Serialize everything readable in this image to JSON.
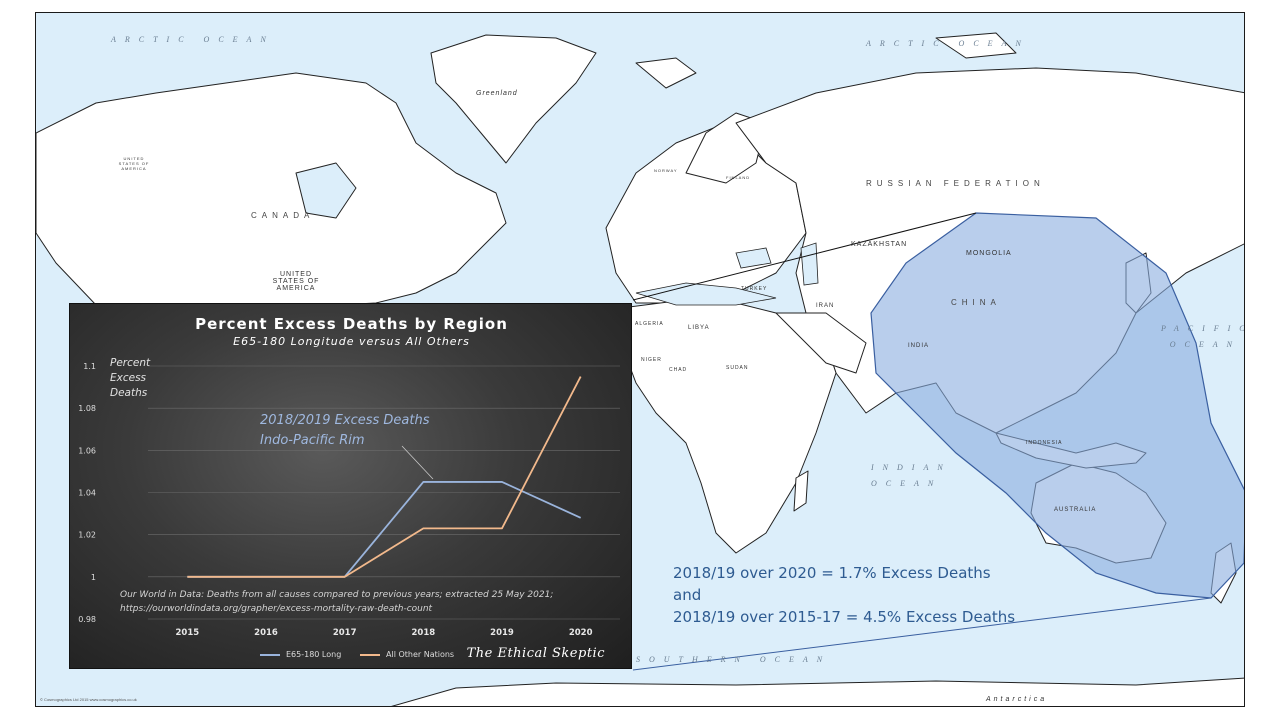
{
  "map": {
    "labels": {
      "arctic_ocean_left": "ARCTIC OCEAN",
      "arctic_ocean_right": "ARCTIC OCEAN",
      "greenland": "Greenland",
      "canada": "CANADA",
      "united_states": "UNITED STATES OF AMERICA",
      "united_states_small": "UNITED STATES OF AMERICA",
      "russian_federation": "RUSSIAN FEDERATION",
      "kazakhstan": "KAZAKHSTAN",
      "mongolia": "MONGOLIA",
      "china": "CHINA",
      "india": "INDIA",
      "iran": "IRAN",
      "turkey": "TURKEY",
      "libya": "LIBYA",
      "niger": "NIGER",
      "chad": "CHAD",
      "sudan": "SUDAN",
      "algeria": "ALGERIA",
      "australia": "AUSTRALIA",
      "indonesia": "INDONESIA",
      "indian_ocean": "INDIAN OCEAN",
      "pacific_ocean": "PACIFIC OCEAN",
      "southern_ocean": "SOUTHERN OCEAN",
      "antarctica": "Antarctica",
      "finland": "FINLAND",
      "norway": "NORWAY"
    },
    "copyright": "© Cosmographics Ltd 2015 www.cosmographics.co.uk",
    "colors": {
      "ocean": "#dceefa",
      "land": "#ffffff",
      "highlight_fill": "#8aaee0",
      "highlight_stroke": "#3a5fa0"
    }
  },
  "chart": {
    "title": "Percent Excess Deaths by Region",
    "subtitle": "E65-180 Longitude versus All Others",
    "ylabel_lines": [
      "Percent",
      "Excess",
      "Deaths"
    ],
    "callout_lines": [
      "2018/2019 Excess Deaths",
      "Indo-Pacific Rim"
    ],
    "source_lines": [
      "Our World in Data: Deaths from all causes compared to previous years; extracted 25 May 2021;",
      "https://ourworldindata.org/grapher/excess-mortality-raw-death-count"
    ],
    "brand": "The Ethical Skeptic"
  },
  "chart_data": {
    "type": "line",
    "title": "Percent Excess Deaths by Region",
    "subtitle": "E65-180 Longitude versus All Others",
    "ylabel": "Percent Excess Deaths",
    "xlabel": "",
    "x": [
      "2015",
      "2016",
      "2017",
      "2018",
      "2019",
      "2020"
    ],
    "yticks": [
      "0.98",
      "1",
      "1.02",
      "1.04",
      "1.06",
      "1.08",
      "1.1"
    ],
    "ylim": [
      0.98,
      1.1
    ],
    "grid": true,
    "legend": "bottom",
    "series": [
      {
        "name": "E65-180 Long",
        "color": "#9ab4dc",
        "values": [
          1.0,
          1.0,
          1.0,
          1.045,
          1.045,
          1.028
        ]
      },
      {
        "name": "All Other Nations",
        "color": "#f2b98c",
        "values": [
          1.0,
          1.0,
          1.0,
          1.023,
          1.023,
          1.095
        ]
      }
    ]
  },
  "annotations": {
    "line1": "2018/19 over 2020 = 1.7% Excess Deaths",
    "line2": "and",
    "line3": "2018/19 over 2015-17 = 4.5% Excess Deaths"
  }
}
